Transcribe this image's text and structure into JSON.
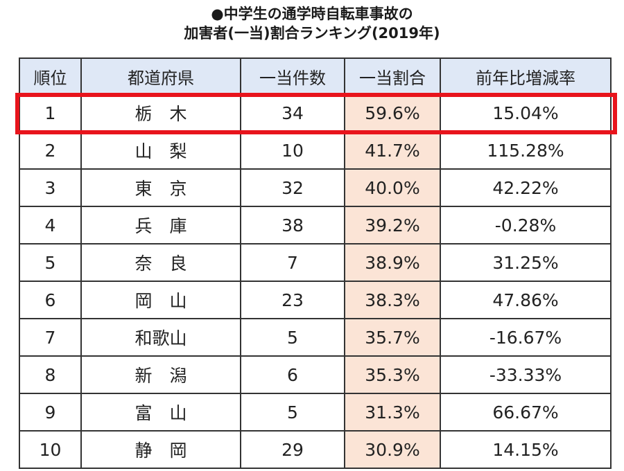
{
  "title": {
    "line1": "●中学生の通学時自転車事故の",
    "line2": "加害者(一当)割合ランキング(2019年)"
  },
  "table": {
    "headers": [
      "順位",
      "都道府県",
      "一当件数",
      "一当割合",
      "前年比増減率"
    ],
    "rows": [
      {
        "rank": "1",
        "prefecture": "栃　木",
        "count": "34",
        "ratio": "59.6%",
        "change": "15.04%"
      },
      {
        "rank": "2",
        "prefecture": "山　梨",
        "count": "10",
        "ratio": "41.7%",
        "change": "115.28%"
      },
      {
        "rank": "3",
        "prefecture": "東　京",
        "count": "32",
        "ratio": "40.0%",
        "change": "42.22%"
      },
      {
        "rank": "4",
        "prefecture": "兵　庫",
        "count": "38",
        "ratio": "39.2%",
        "change": "-0.28%"
      },
      {
        "rank": "5",
        "prefecture": "奈　良",
        "count": "7",
        "ratio": "38.9%",
        "change": "31.25%"
      },
      {
        "rank": "6",
        "prefecture": "岡　山",
        "count": "23",
        "ratio": "38.3%",
        "change": "47.86%"
      },
      {
        "rank": "7",
        "prefecture": "和歌山",
        "count": "5",
        "ratio": "35.7%",
        "change": "-16.67%"
      },
      {
        "rank": "8",
        "prefecture": "新　潟",
        "count": "6",
        "ratio": "35.3%",
        "change": "-33.33%"
      },
      {
        "rank": "9",
        "prefecture": "富　山",
        "count": "5",
        "ratio": "31.3%",
        "change": "66.67%"
      },
      {
        "rank": "10",
        "prefecture": "静　岡",
        "count": "29",
        "ratio": "30.9%",
        "change": "14.15%"
      }
    ]
  },
  "colors": {
    "header_background": "#dfe8f6",
    "ratio_column_background": "#fbe4d6",
    "highlight_border": "#e8141c",
    "grid_lines": "#333333"
  }
}
